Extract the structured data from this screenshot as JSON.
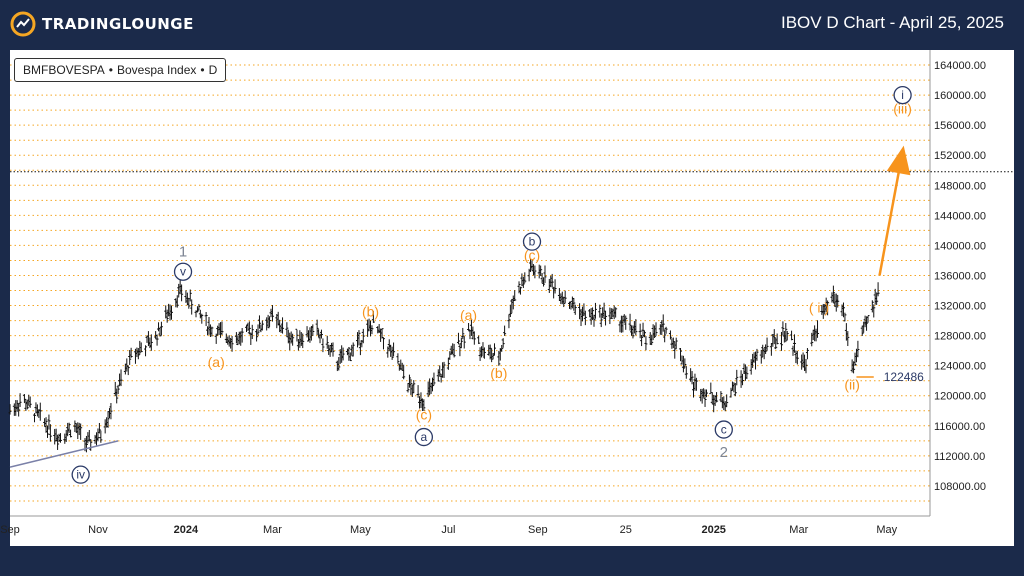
{
  "header": {
    "brand": "TRADINGLOUNGE",
    "title": "IBOV D Chart - April 25, 2025",
    "accent_color": "#f5a623"
  },
  "symbol": {
    "exchange": "BMFBOVESPA",
    "separator": "•",
    "name": "Bovespa Index",
    "interval": "D"
  },
  "chart_data": {
    "type": "candlestick",
    "ylim": [
      104000,
      166000
    ],
    "y_ticks": [
      108000,
      112000,
      116000,
      120000,
      124000,
      128000,
      132000,
      136000,
      140000,
      144000,
      148000,
      152000,
      156000,
      160000,
      164000
    ],
    "y_tick_labels": [
      "108000.00",
      "112000.00",
      "116000.00",
      "120000.00",
      "124000.00",
      "128000.00",
      "132000.00",
      "136000.00",
      "140000.00",
      "144000.00",
      "148000.00",
      "152000.00",
      "156000.00",
      "160000.00",
      "164000.00"
    ],
    "x_range": [
      "2023-09-01",
      "2025-05-31"
    ],
    "x_ticks": [
      {
        "label": "Sep",
        "date": "2023-09-01",
        "bold": false
      },
      {
        "label": "Nov",
        "date": "2023-11-01",
        "bold": false
      },
      {
        "label": "2024",
        "date": "2024-01-01",
        "bold": true
      },
      {
        "label": "Mar",
        "date": "2024-03-01",
        "bold": false
      },
      {
        "label": "May",
        "date": "2024-05-01",
        "bold": false
      },
      {
        "label": "Jul",
        "date": "2024-07-01",
        "bold": false
      },
      {
        "label": "Sep",
        "date": "2024-09-01",
        "bold": false
      },
      {
        "label": "25",
        "date": "2024-11-01",
        "bold": false
      },
      {
        "label": "2025",
        "date": "2025-01-01",
        "bold": true
      },
      {
        "label": "Mar",
        "date": "2025-03-01",
        "bold": false
      },
      {
        "label": "May",
        "date": "2025-05-01",
        "bold": false
      }
    ],
    "price_path": [
      {
        "date": "2023-09-01",
        "price": 118000
      },
      {
        "date": "2023-09-10",
        "price": 119500
      },
      {
        "date": "2023-09-25",
        "price": 116500
      },
      {
        "date": "2023-10-05",
        "price": 114500
      },
      {
        "date": "2023-10-15",
        "price": 116000
      },
      {
        "date": "2023-10-25",
        "price": 113500
      },
      {
        "date": "2023-11-03",
        "price": 115000
      },
      {
        "date": "2023-11-15",
        "price": 121000
      },
      {
        "date": "2023-11-25",
        "price": 125500
      },
      {
        "date": "2023-12-10",
        "price": 127500
      },
      {
        "date": "2023-12-28",
        "price": 134000
      },
      {
        "date": "2024-01-08",
        "price": 131500
      },
      {
        "date": "2024-01-20",
        "price": 128500
      },
      {
        "date": "2024-02-05",
        "price": 127500
      },
      {
        "date": "2024-02-20",
        "price": 129000
      },
      {
        "date": "2024-03-01",
        "price": 130500
      },
      {
        "date": "2024-03-15",
        "price": 127500
      },
      {
        "date": "2024-04-01",
        "price": 128500
      },
      {
        "date": "2024-04-15",
        "price": 124500
      },
      {
        "date": "2024-04-25",
        "price": 126000
      },
      {
        "date": "2024-05-10",
        "price": 129500
      },
      {
        "date": "2024-05-25",
        "price": 125000
      },
      {
        "date": "2024-06-05",
        "price": 121000
      },
      {
        "date": "2024-06-14",
        "price": 119500
      },
      {
        "date": "2024-06-25",
        "price": 122500
      },
      {
        "date": "2024-07-08",
        "price": 127000
      },
      {
        "date": "2024-07-15",
        "price": 129000
      },
      {
        "date": "2024-07-25",
        "price": 126000
      },
      {
        "date": "2024-08-05",
        "price": 125000
      },
      {
        "date": "2024-08-15",
        "price": 133000
      },
      {
        "date": "2024-08-28",
        "price": 137000
      },
      {
        "date": "2024-09-10",
        "price": 135000
      },
      {
        "date": "2024-09-25",
        "price": 132000
      },
      {
        "date": "2024-10-05",
        "price": 130500
      },
      {
        "date": "2024-10-20",
        "price": 131000
      },
      {
        "date": "2024-11-01",
        "price": 129500
      },
      {
        "date": "2024-11-15",
        "price": 127500
      },
      {
        "date": "2024-11-28",
        "price": 129000
      },
      {
        "date": "2024-12-08",
        "price": 126000
      },
      {
        "date": "2024-12-18",
        "price": 121500
      },
      {
        "date": "2025-01-08",
        "price": 119000
      },
      {
        "date": "2025-01-20",
        "price": 122500
      },
      {
        "date": "2025-02-05",
        "price": 126000
      },
      {
        "date": "2025-02-20",
        "price": 128500
      },
      {
        "date": "2025-03-05",
        "price": 124000
      },
      {
        "date": "2025-03-15",
        "price": 130000
      },
      {
        "date": "2025-03-25",
        "price": 133000
      },
      {
        "date": "2025-04-01",
        "price": 131500
      },
      {
        "date": "2025-04-07",
        "price": 123500
      },
      {
        "date": "2025-04-14",
        "price": 128000
      },
      {
        "date": "2025-04-22",
        "price": 132000
      },
      {
        "date": "2025-04-25",
        "price": 134500
      }
    ],
    "trendline": {
      "from": {
        "date": "2023-09-01",
        "price": 110500
      },
      "to": {
        "date": "2023-11-15",
        "price": 114000
      },
      "color": "#7a80a8"
    },
    "projection": {
      "from": {
        "date": "2025-04-26",
        "price": 136000
      },
      "to": {
        "date": "2025-05-12",
        "price": 152500
      },
      "color": "#f7941d"
    },
    "level": {
      "value": 122486,
      "label": "122486",
      "from_date": "2025-04-10",
      "to_date": "2025-04-22",
      "color": "#f7941d"
    },
    "black_dotted_level": 149800,
    "wave_labels": [
      {
        "text": "1",
        "date": "2023-12-30",
        "price": 139200,
        "style": "plain-gray"
      },
      {
        "text": "v",
        "date": "2023-12-30",
        "price": 134000,
        "style": "circle-navy",
        "offset": 2500
      },
      {
        "text": "(a)",
        "date": "2024-01-22",
        "price": 126500,
        "style": "orange",
        "below": true
      },
      {
        "text": "(b)",
        "date": "2024-05-08",
        "price": 129500,
        "style": "orange"
      },
      {
        "text": "(c)",
        "date": "2024-06-14",
        "price": 119500,
        "style": "orange",
        "below": true
      },
      {
        "text": "a",
        "date": "2024-06-14",
        "price": 114500,
        "style": "circle-navy"
      },
      {
        "text": "(a)",
        "date": "2024-07-15",
        "price": 129000,
        "style": "orange"
      },
      {
        "text": "(b)",
        "date": "2024-08-05",
        "price": 125000,
        "style": "orange",
        "below": true
      },
      {
        "text": "(c)",
        "date": "2024-08-28",
        "price": 137000,
        "style": "orange"
      },
      {
        "text": "b",
        "date": "2024-08-28",
        "price": 140500,
        "style": "circle-navy"
      },
      {
        "text": "c",
        "date": "2025-01-08",
        "price": 115500,
        "style": "circle-navy"
      },
      {
        "text": "2",
        "date": "2025-01-08",
        "price": 112500,
        "style": "plain-gray"
      },
      {
        "text": "( i )",
        "date": "2025-03-15",
        "price": 130000,
        "style": "orange"
      },
      {
        "text": "(ii)",
        "date": "2025-04-07",
        "price": 123500,
        "style": "orange",
        "below": true
      },
      {
        "text": "iv",
        "date": "2023-10-20",
        "price": 109500,
        "style": "circle-navy"
      },
      {
        "text": "(iii)",
        "date": "2025-05-12",
        "price": 156500,
        "style": "orange"
      },
      {
        "text": "i",
        "date": "2025-05-12",
        "price": 160000,
        "style": "circle-navy"
      }
    ],
    "grid": "horizontal dotted orange",
    "colors": {
      "candles": "#111111",
      "grid": "#f5a623",
      "navy": "#2b3a67",
      "orange": "#f7941d",
      "gray": "#7d8594"
    }
  }
}
